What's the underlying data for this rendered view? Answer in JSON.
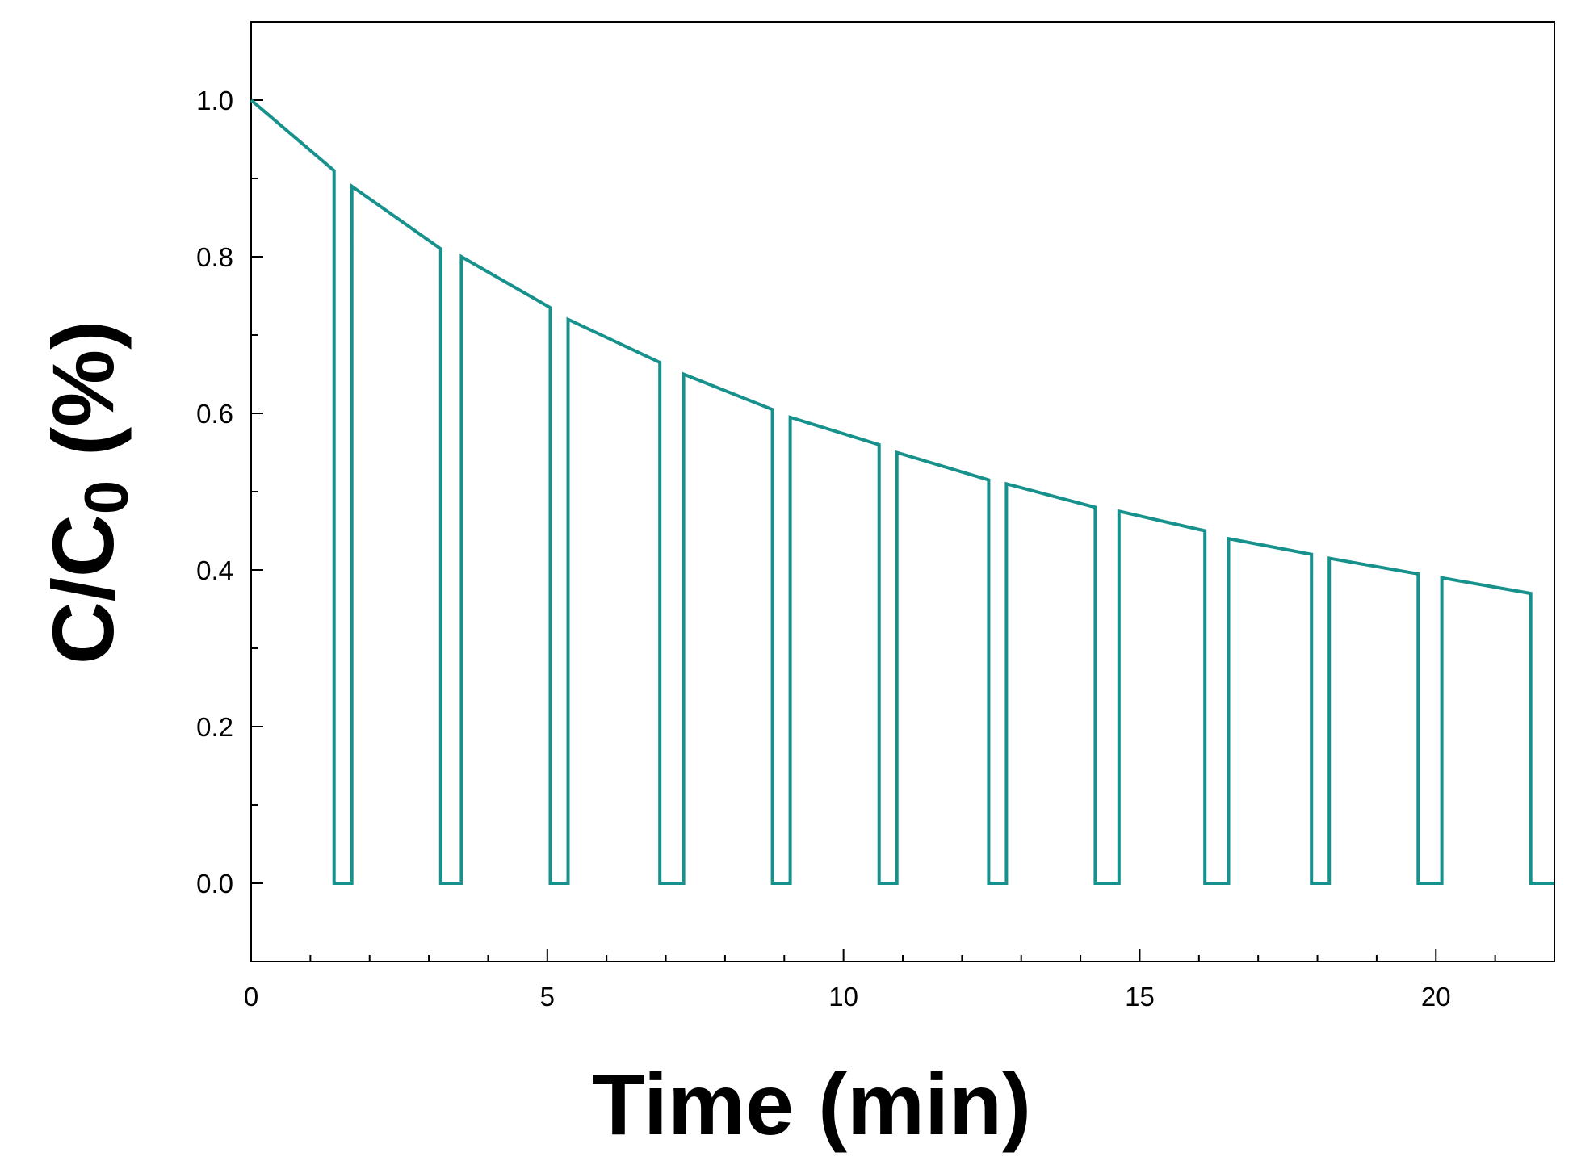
{
  "chart_data": {
    "type": "line",
    "xlabel": "Time (min)",
    "ylabel_main": "C/C",
    "ylabel_sub": "0",
    "ylabel_suffix": " (%)",
    "xlim": [
      0,
      22
    ],
    "ylim": [
      -0.1,
      1.1
    ],
    "x_ticks": [
      {
        "value": 0,
        "label": "0"
      },
      {
        "value": 5,
        "label": "5"
      },
      {
        "value": 10,
        "label": "10"
      },
      {
        "value": 15,
        "label": "15"
      },
      {
        "value": 20,
        "label": "20"
      }
    ],
    "x_minor_step": 1,
    "y_ticks": [
      {
        "value": 0.0,
        "label": "0.0"
      },
      {
        "value": 0.2,
        "label": "0.2"
      },
      {
        "value": 0.4,
        "label": "0.4"
      },
      {
        "value": 0.6,
        "label": "0.6"
      },
      {
        "value": 0.8,
        "label": "0.8"
      },
      {
        "value": 1.0,
        "label": "1.0"
      }
    ],
    "y_minor_step": 0.1,
    "grid": false,
    "legend": "none",
    "series_color": "#17918c",
    "series": [
      {
        "x": [
          0,
          1.4,
          1.4,
          1.7,
          1.7,
          3.2,
          3.2,
          3.55,
          3.55,
          5.05,
          5.05,
          5.35,
          5.35,
          6.9,
          6.9,
          7.3,
          7.3,
          8.8,
          8.8,
          9.1,
          9.1,
          10.6,
          10.6,
          10.9,
          10.9,
          12.45,
          12.45,
          12.75,
          12.75,
          14.25,
          14.25,
          14.65,
          14.65,
          16.1,
          16.1,
          16.5,
          16.5,
          17.9,
          17.9,
          18.2,
          18.2,
          19.7,
          19.7,
          20.1,
          20.1,
          21.6,
          21.6,
          22.0
        ],
        "y": [
          1.0,
          0.91,
          0.0,
          0.0,
          0.89,
          0.81,
          0.0,
          0.0,
          0.8,
          0.735,
          0.0,
          0.0,
          0.72,
          0.665,
          0.0,
          0.0,
          0.65,
          0.605,
          0.0,
          0.0,
          0.595,
          0.56,
          0.0,
          0.0,
          0.55,
          0.515,
          0.0,
          0.0,
          0.51,
          0.48,
          0.0,
          0.0,
          0.475,
          0.45,
          0.0,
          0.0,
          0.44,
          0.42,
          0.0,
          0.0,
          0.415,
          0.395,
          0.0,
          0.0,
          0.39,
          0.37,
          0.0,
          0.0
        ]
      }
    ]
  }
}
